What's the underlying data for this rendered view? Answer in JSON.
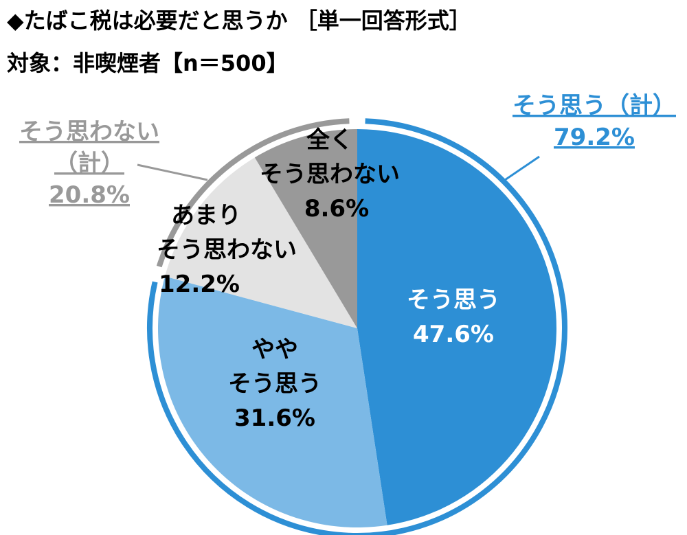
{
  "title": "◆たばこ税は必要だと思うか ［単一回答形式］",
  "subtitle": "対象：非喫煙者【n＝500】",
  "chart_data": {
    "type": "pie",
    "start_angle_deg": 0,
    "direction": "clockwise",
    "slices": [
      {
        "label_lines": [
          "そう思う"
        ],
        "value": 47.6,
        "value_text": "47.6%",
        "color": "#2d8fd5",
        "text_color": "#ffffff"
      },
      {
        "label_lines": [
          "やや",
          "そう思う"
        ],
        "value": 31.6,
        "value_text": "31.6%",
        "color": "#7cb9e6",
        "text_color": "#000000"
      },
      {
        "label_lines": [
          "あまり",
          "そう思わない"
        ],
        "value": 12.2,
        "value_text": "12.2%",
        "color": "#e3e3e3",
        "text_color": "#000000"
      },
      {
        "label_lines": [
          "全く",
          "そう思わない"
        ],
        "value": 8.6,
        "value_text": "8.6%",
        "color": "#999999",
        "text_color": "#000000"
      }
    ],
    "groups": [
      {
        "label_lines": [
          "そう思う（計）"
        ],
        "value": 79.2,
        "value_text": "79.2%",
        "color": "#2d8fd5",
        "slice_indices": [
          0,
          1
        ]
      },
      {
        "label_lines": [
          "そう思わない",
          "（計）"
        ],
        "value": 20.8,
        "value_text": "20.8%",
        "color": "#999999",
        "slice_indices": [
          2,
          3
        ]
      }
    ]
  }
}
